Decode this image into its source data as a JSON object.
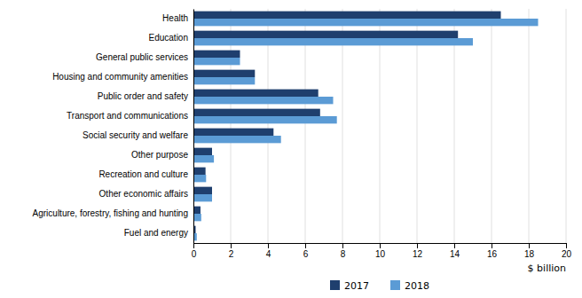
{
  "chart_data": {
    "type": "bar",
    "orientation": "horizontal",
    "categories": [
      "Fuel and energy",
      "Agriculture, forestry, fishing and hunting",
      "Other economic affairs",
      "Recreation and culture",
      "Other purpose",
      "Social security and welfare",
      "Transport and communications",
      "Public order and safety",
      "Housing and community amenities",
      "General public services",
      "Education",
      "Health"
    ],
    "series": [
      {
        "name": "2017",
        "color": "#1F3F6E",
        "values": [
          0.12,
          0.38,
          1.0,
          0.65,
          1.0,
          4.3,
          6.8,
          6.7,
          3.3,
          2.5,
          14.2,
          16.5
        ]
      },
      {
        "name": "2018",
        "color": "#5B9BD5",
        "values": [
          0.18,
          0.42,
          1.0,
          0.68,
          1.1,
          4.7,
          7.7,
          7.5,
          3.3,
          2.5,
          15.0,
          18.5
        ]
      }
    ],
    "xlabel": "$ billion",
    "xlim": [
      0,
      20
    ],
    "xticks": [
      0,
      2,
      4,
      6,
      8,
      10,
      12,
      14,
      16,
      18,
      20
    ],
    "grid": true,
    "legend": "bottom"
  }
}
